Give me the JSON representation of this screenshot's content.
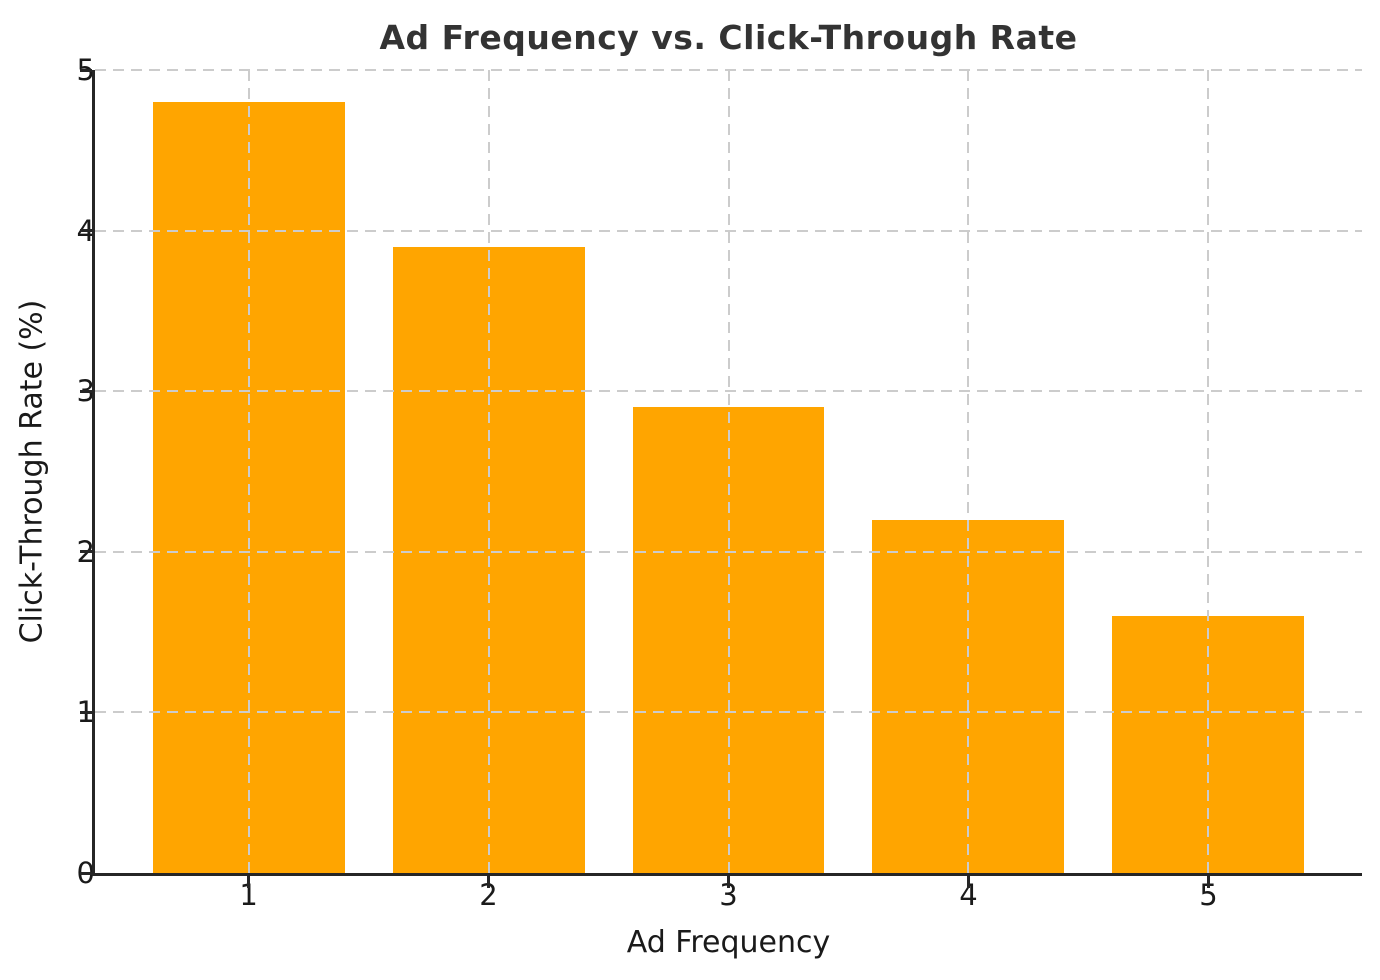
{
  "chart_data": {
    "type": "bar",
    "title": "Ad Frequency vs. Click-Through Rate",
    "xlabel": "Ad Frequency",
    "ylabel": "Click-Through Rate (%)",
    "categories": [
      "1",
      "2",
      "3",
      "4",
      "5"
    ],
    "values": [
      4.8,
      3.9,
      2.9,
      2.2,
      1.6
    ],
    "yticks": [
      0,
      1,
      2,
      3,
      4,
      5
    ],
    "ylim": [
      0,
      5
    ],
    "xlim": [
      0.36,
      5.64
    ],
    "bar_width_data_units": 0.8,
    "bar_color": "#FFA500",
    "grid": "on",
    "grid_line_style": "dashed",
    "grid_color": "#cccccc",
    "axis_color": "#262626",
    "tick_label_color": "#1a1a1a",
    "title_color": "#333333",
    "legend": "none",
    "background_color": "#ffffff"
  }
}
